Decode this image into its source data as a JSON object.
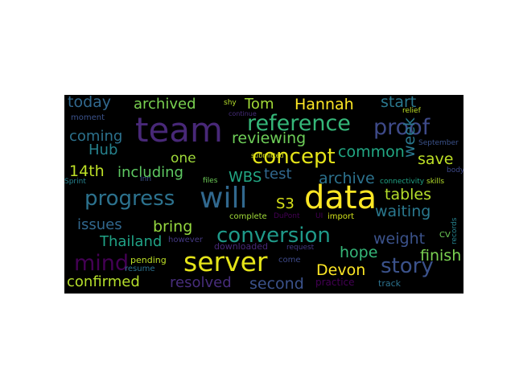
{
  "word_cloud": {
    "words": [
      {
        "text": "today",
        "color": "#31688e"
      },
      {
        "text": "archived",
        "color": "#7ad151"
      },
      {
        "text": "shy",
        "color": "#b5de2b"
      },
      {
        "text": "Tom",
        "color": "#a2da37"
      },
      {
        "text": "Hannah",
        "color": "#fde725"
      },
      {
        "text": "start",
        "color": "#2a788e"
      },
      {
        "text": "moment",
        "color": "#3b528b"
      },
      {
        "text": "team",
        "color": "#482878"
      },
      {
        "text": "continue",
        "color": "#472d7b"
      },
      {
        "text": "reference",
        "color": "#35b779"
      },
      {
        "text": "proof",
        "color": "#3e4a89"
      },
      {
        "text": "coming",
        "color": "#2c728e"
      },
      {
        "text": "reviewing",
        "color": "#6ece58"
      },
      {
        "text": "concept",
        "color": "#e5e419"
      },
      {
        "text": "common",
        "color": "#22a884"
      },
      {
        "text": "week",
        "color": "#2a788e"
      },
      {
        "text": "September",
        "color": "#3b528b"
      },
      {
        "text": "Hub",
        "color": "#26828e"
      },
      {
        "text": "one",
        "color": "#9fda3a"
      },
      {
        "text": "save",
        "color": "#bddf26"
      },
      {
        "text": "14th",
        "color": "#bddf26"
      },
      {
        "text": "including",
        "color": "#5ec962"
      },
      {
        "text": "WBS",
        "color": "#22a884"
      },
      {
        "text": "test",
        "color": "#31688e"
      },
      {
        "text": "archive",
        "color": "#2c728e"
      },
      {
        "text": "Sprint",
        "color": "#26828e"
      },
      {
        "text": "Inn",
        "color": "#3b528b"
      },
      {
        "text": "files",
        "color": "#6ece58"
      },
      {
        "text": "submitted",
        "color": "#d8e219"
      },
      {
        "text": "connectivity",
        "color": "#20a386"
      },
      {
        "text": "body",
        "color": "#3e4989"
      },
      {
        "text": "skills",
        "color": "#b5de2b"
      },
      {
        "text": "progress",
        "color": "#2c728e"
      },
      {
        "text": "will",
        "color": "#31688e"
      },
      {
        "text": "data",
        "color": "#fde725"
      },
      {
        "text": "S3",
        "color": "#d8e219"
      },
      {
        "text": "tables",
        "color": "#b5de2b"
      },
      {
        "text": "waiting",
        "color": "#2a788e"
      },
      {
        "text": "issues",
        "color": "#31688e"
      },
      {
        "text": "bring",
        "color": "#95d840"
      },
      {
        "text": "complete",
        "color": "#a0da39"
      },
      {
        "text": "DuPont",
        "color": "#440154"
      },
      {
        "text": "UI",
        "color": "#440154"
      },
      {
        "text": "import",
        "color": "#d2e21b"
      },
      {
        "text": "conversion",
        "color": "#1f9a8a"
      },
      {
        "text": "weight",
        "color": "#3b528b"
      },
      {
        "text": "CV",
        "color": "#6ece58"
      },
      {
        "text": "records",
        "color": "#26828e"
      },
      {
        "text": "Thailand",
        "color": "#20a386"
      },
      {
        "text": "however",
        "color": "#443983"
      },
      {
        "text": "downloaded",
        "color": "#482878"
      },
      {
        "text": "request",
        "color": "#443983"
      },
      {
        "text": "mind",
        "color": "#440154"
      },
      {
        "text": "server",
        "color": "#e5e419"
      },
      {
        "text": "hope",
        "color": "#35b779"
      },
      {
        "text": "finish",
        "color": "#7ad151"
      },
      {
        "text": "story",
        "color": "#3b528b"
      },
      {
        "text": "pending",
        "color": "#bddf26"
      },
      {
        "text": "resume",
        "color": "#2c728e"
      },
      {
        "text": "come",
        "color": "#3e4a89"
      },
      {
        "text": "Devon",
        "color": "#fde725"
      },
      {
        "text": "confirmed",
        "color": "#b5de2b"
      },
      {
        "text": "resolved",
        "color": "#472d7b"
      },
      {
        "text": "second",
        "color": "#3b528b"
      },
      {
        "text": "practice",
        "color": "#440154"
      },
      {
        "text": "track",
        "color": "#2c728e"
      },
      {
        "text": "relief",
        "color": "#bddf26"
      }
    ]
  }
}
